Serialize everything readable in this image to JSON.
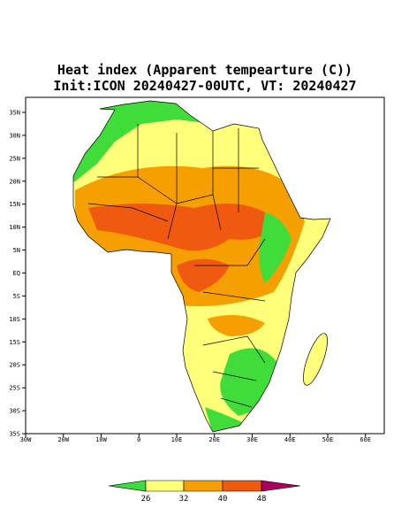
{
  "title": "Heat index (Apparent tempearture (C))",
  "subtitle": "Init:ICON 20240427-00UTC, VT: 20240427",
  "map": {
    "lon_labels": [
      "30W",
      "20W",
      "10W",
      "0",
      "10E",
      "20E",
      "30E",
      "40E",
      "50E",
      "60E"
    ],
    "lat_labels": [
      "35N",
      "30N",
      "25N",
      "20N",
      "15N",
      "10N",
      "5N",
      "EQ",
      "5S",
      "10S",
      "15S",
      "20S",
      "25S",
      "30S",
      "35S"
    ]
  },
  "colorbar": {
    "levels": [
      26,
      32,
      40,
      48
    ],
    "colors": [
      "#3fdc3a",
      "#ffff7a",
      "#f5a000",
      "#f05a10",
      "#a8005c"
    ]
  }
}
